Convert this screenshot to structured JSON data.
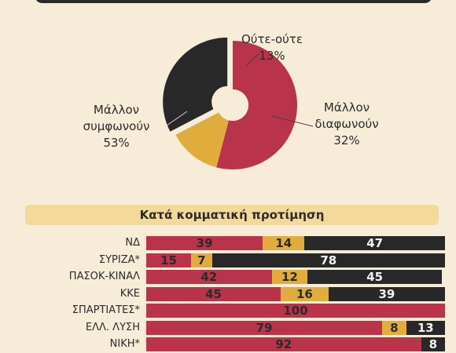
{
  "colors": {
    "agree": "#b9344a",
    "neutral": "#e0ad3c",
    "disagree": "#282828",
    "background": "#f7ecd8",
    "header": "#f3d99a"
  },
  "pie": {
    "labels": [
      {
        "lines": [
          "Μάλλον",
          "συμφωνούν",
          "53%"
        ]
      },
      {
        "lines": [
          "Ούτε-ούτε",
          "13%"
        ]
      },
      {
        "lines": [
          "Μάλλον",
          "διαφωνούν",
          "32%"
        ]
      }
    ]
  },
  "section_title": "Κατά κομματική προτίμηση",
  "chart_data": [
    {
      "type": "pie",
      "categories": [
        "Μάλλον συμφωνούν",
        "Ούτε-ούτε",
        "Μάλλον διαφωνούν"
      ],
      "values": [
        53,
        13,
        32
      ],
      "donut": true
    },
    {
      "type": "bar",
      "orientation": "horizontal",
      "stacked": true,
      "categories": [
        "ΝΔ",
        "ΣΥΡΙΖΑ*",
        "ΠΑΣΟΚ-ΚΙΝΑΛ",
        "ΚΚΕ",
        "ΣΠΑΡΤΙΑΤΕΣ*",
        "ΕΛΛ. ΛΥΣΗ",
        "ΝΙΚΗ*"
      ],
      "series": [
        {
          "values": [
            39,
            15,
            42,
            45,
            100,
            79,
            92
          ]
        },
        {
          "values": [
            14,
            7,
            12,
            16,
            0,
            8,
            0
          ]
        },
        {
          "values": [
            47,
            78,
            45,
            39,
            0,
            13,
            8
          ]
        }
      ]
    }
  ]
}
